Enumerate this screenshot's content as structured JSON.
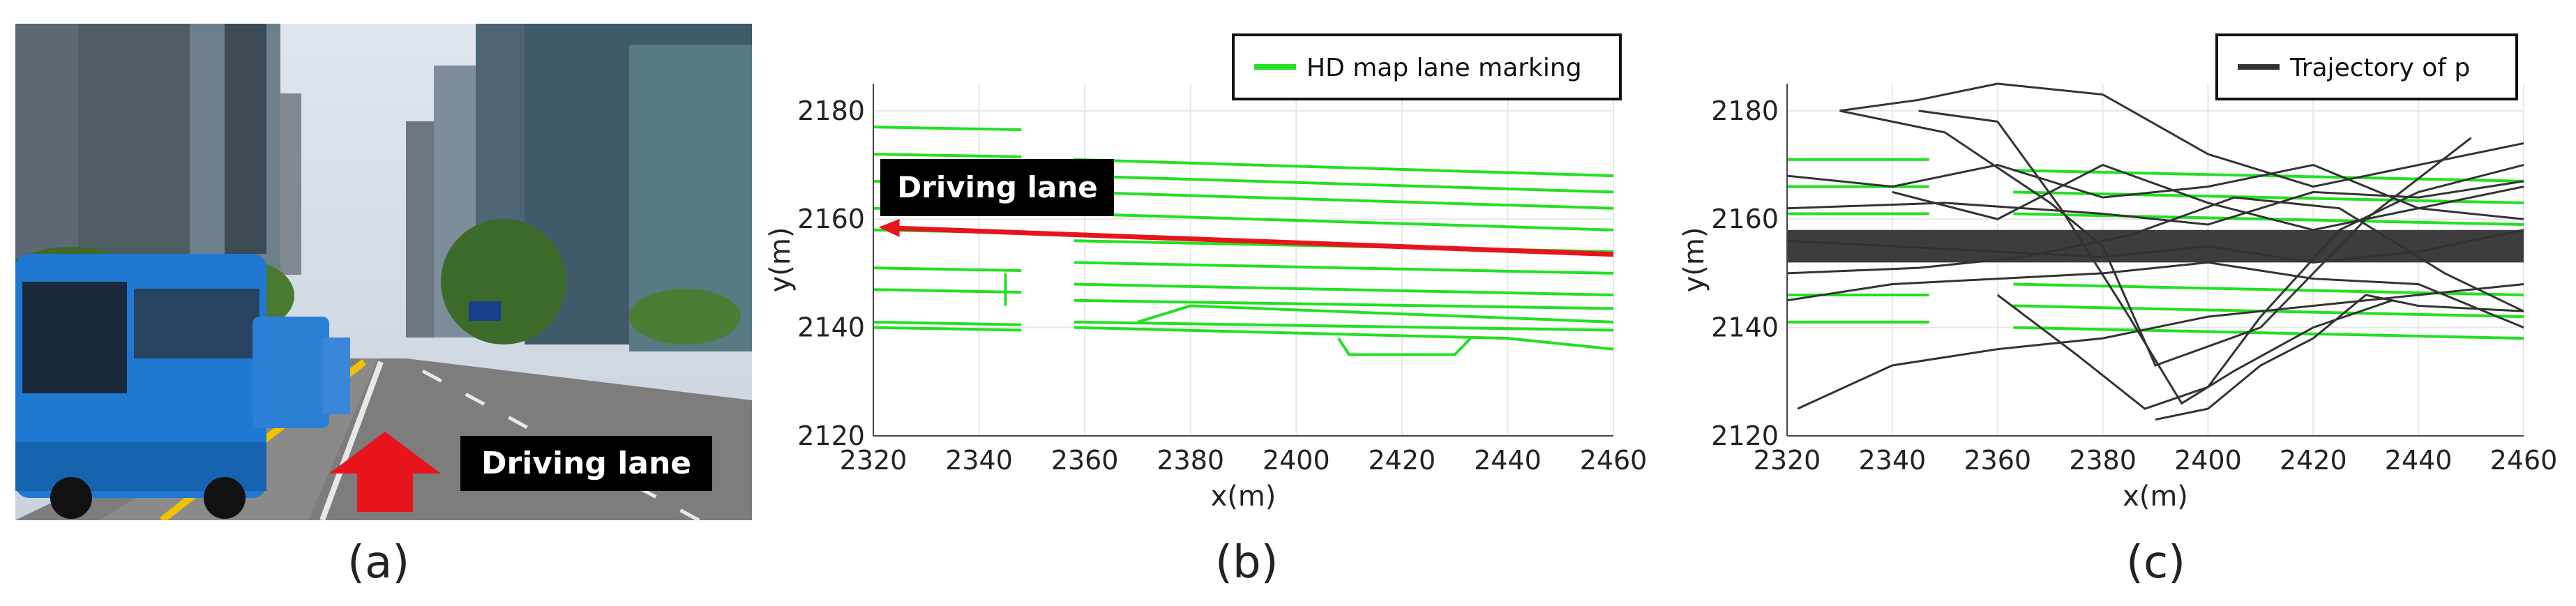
{
  "panels": {
    "a": {
      "label": "(a)",
      "annotation": "Driving lane"
    },
    "b": {
      "label": "(b)"
    },
    "c": {
      "label": "(c)"
    }
  },
  "colors": {
    "lane": "#22e022",
    "trajectory": "#333333",
    "arrow": "#e8141b",
    "bus": "#1f78d1"
  },
  "chart_data": [
    {
      "type": "line",
      "legend": {
        "entries": [
          "HD map lane marking"
        ],
        "placement": "top-right"
      },
      "xlabel": "x(m)",
      "ylabel": "y(m)",
      "xlim": [
        2320,
        2460
      ],
      "ylim": [
        2120,
        2185
      ],
      "xticks": [
        "2320",
        "2340",
        "2360",
        "2380",
        "2400",
        "2420",
        "2440",
        "2460"
      ],
      "yticks": [
        "2120",
        "2140",
        "2160",
        "2180"
      ],
      "annotation": "Driving lane",
      "arrow": {
        "from": [
          2460,
          2153.5
        ],
        "to": [
          2321,
          2158.5
        ]
      },
      "series": [
        {
          "x": [
            2320,
            2348
          ],
          "y": [
            2177,
            2176.5
          ]
        },
        {
          "x": [
            2320,
            2348
          ],
          "y": [
            2172,
            2171.5
          ]
        },
        {
          "x": [
            2320,
            2348
          ],
          "y": [
            2167,
            2166.5
          ]
        },
        {
          "x": [
            2320,
            2348
          ],
          "y": [
            2162,
            2162
          ]
        },
        {
          "x": [
            2320,
            2348
          ],
          "y": [
            2158,
            2157.5
          ]
        },
        {
          "x": [
            2320,
            2348
          ],
          "y": [
            2151,
            2150.5
          ]
        },
        {
          "x": [
            2320,
            2348
          ],
          "y": [
            2147,
            2146.5
          ]
        },
        {
          "x": [
            2320,
            2348
          ],
          "y": [
            2141,
            2140.5
          ]
        },
        {
          "x": [
            2320,
            2348
          ],
          "y": [
            2140,
            2139.5
          ]
        },
        {
          "x": [
            2358,
            2460
          ],
          "y": [
            2171,
            2168
          ]
        },
        {
          "x": [
            2358,
            2460
          ],
          "y": [
            2168,
            2165
          ]
        },
        {
          "x": [
            2358,
            2460
          ],
          "y": [
            2165,
            2162
          ]
        },
        {
          "x": [
            2358,
            2460
          ],
          "y": [
            2161,
            2158
          ]
        },
        {
          "x": [
            2358,
            2460
          ],
          "y": [
            2156,
            2154
          ]
        },
        {
          "x": [
            2358,
            2460
          ],
          "y": [
            2152,
            2150
          ]
        },
        {
          "x": [
            2358,
            2460
          ],
          "y": [
            2148,
            2146
          ]
        },
        {
          "x": [
            2358,
            2460
          ],
          "y": [
            2145,
            2143.5
          ]
        },
        {
          "x": [
            2358,
            2460
          ],
          "y": [
            2141,
            2139.5
          ]
        },
        {
          "x": [
            2358,
            2440,
            2460
          ],
          "y": [
            2140,
            2138,
            2136
          ]
        },
        {
          "x": [
            2370,
            2380,
            2460
          ],
          "y": [
            2141,
            2144,
            2141
          ]
        },
        {
          "x": [
            2345,
            2345
          ],
          "y": [
            2144,
            2150
          ]
        },
        {
          "x": [
            2408,
            2410,
            2430,
            2433
          ],
          "y": [
            2138,
            2135,
            2135,
            2138
          ]
        }
      ]
    },
    {
      "type": "line",
      "legend": {
        "entries": [
          "Trajectory of p"
        ],
        "placement": "top-right"
      },
      "xlabel": "x(m)",
      "ylabel": "y(m)",
      "xlim": [
        2320,
        2460
      ],
      "ylim": [
        2120,
        2185
      ],
      "xticks": [
        "2320",
        "2340",
        "2360",
        "2380",
        "2400",
        "2420",
        "2440",
        "2460"
      ],
      "yticks": [
        "2120",
        "2140",
        "2160",
        "2180"
      ],
      "lane_markings": [
        {
          "x": [
            2320,
            2347
          ],
          "y": [
            2171,
            2171
          ]
        },
        {
          "x": [
            2320,
            2347
          ],
          "y": [
            2166,
            2166
          ]
        },
        {
          "x": [
            2320,
            2347
          ],
          "y": [
            2161,
            2161
          ]
        },
        {
          "x": [
            2320,
            2347
          ],
          "y": [
            2146,
            2146
          ]
        },
        {
          "x": [
            2320,
            2347
          ],
          "y": [
            2141,
            2141
          ]
        },
        {
          "x": [
            2363,
            2460
          ],
          "y": [
            2169,
            2167
          ]
        },
        {
          "x": [
            2363,
            2460
          ],
          "y": [
            2165,
            2163
          ]
        },
        {
          "x": [
            2363,
            2460
          ],
          "y": [
            2161,
            2159
          ]
        },
        {
          "x": [
            2363,
            2460
          ],
          "y": [
            2148,
            2146
          ]
        },
        {
          "x": [
            2363,
            2460
          ],
          "y": [
            2144,
            2142
          ]
        },
        {
          "x": [
            2363,
            2460
          ],
          "y": [
            2140,
            2138
          ]
        }
      ],
      "series": [
        {
          "x": [
            2330,
            2345,
            2360,
            2380,
            2400,
            2420,
            2440,
            2460
          ],
          "y": [
            2180,
            2182,
            2185,
            2183,
            2172,
            2166,
            2170,
            2174
          ]
        },
        {
          "x": [
            2320,
            2340,
            2360,
            2380,
            2400,
            2420,
            2440,
            2460
          ],
          "y": [
            2168,
            2166,
            2170,
            2164,
            2166,
            2170,
            2162,
            2166
          ]
        },
        {
          "x": [
            2322,
            2340,
            2360,
            2380,
            2400,
            2420,
            2440,
            2460
          ],
          "y": [
            2125,
            2133,
            2136,
            2138,
            2142,
            2144,
            2146,
            2148
          ]
        },
        {
          "x": [
            2345,
            2360,
            2372,
            2385,
            2395,
            2405,
            2420,
            2435
          ],
          "y": [
            2180,
            2178,
            2162,
            2142,
            2126,
            2132,
            2140,
            2145
          ]
        },
        {
          "x": [
            2360,
            2375,
            2388,
            2400,
            2410,
            2425,
            2440,
            2460
          ],
          "y": [
            2146,
            2135,
            2125,
            2129,
            2142,
            2158,
            2165,
            2170
          ]
        },
        {
          "x": [
            2320,
            2345,
            2365,
            2385,
            2405,
            2425,
            2445,
            2460
          ],
          "y": [
            2150,
            2151,
            2153,
            2157,
            2164,
            2162,
            2150,
            2143
          ]
        },
        {
          "x": [
            2390,
            2400,
            2410,
            2420,
            2430,
            2440,
            2460
          ],
          "y": [
            2123,
            2125,
            2133,
            2138,
            2146,
            2144,
            2143
          ]
        },
        {
          "x": [
            2320,
            2340,
            2360,
            2380,
            2400,
            2420,
            2440,
            2460
          ],
          "y": [
            2156,
            2155,
            2154,
            2153,
            2155,
            2152,
            2154,
            2158
          ]
        },
        {
          "x": [
            2330,
            2350,
            2370,
            2380,
            2390,
            2410,
            2430,
            2450
          ],
          "y": [
            2180,
            2176,
            2163,
            2155,
            2133,
            2140,
            2160,
            2175
          ]
        },
        {
          "x": [
            2320,
            2340,
            2360,
            2380,
            2400,
            2420,
            2440,
            2460
          ],
          "y": [
            2145,
            2148,
            2149,
            2150,
            2152,
            2149,
            2148,
            2140
          ]
        },
        {
          "x": [
            2340,
            2360,
            2380,
            2400,
            2420,
            2440,
            2460
          ],
          "y": [
            2165,
            2160,
            2170,
            2163,
            2158,
            2162,
            2160
          ]
        },
        {
          "x": [
            2320,
            2350,
            2380,
            2400,
            2420,
            2440,
            2460
          ],
          "y": [
            2162,
            2163,
            2161,
            2159,
            2165,
            2164,
            2167
          ]
        }
      ]
    }
  ]
}
